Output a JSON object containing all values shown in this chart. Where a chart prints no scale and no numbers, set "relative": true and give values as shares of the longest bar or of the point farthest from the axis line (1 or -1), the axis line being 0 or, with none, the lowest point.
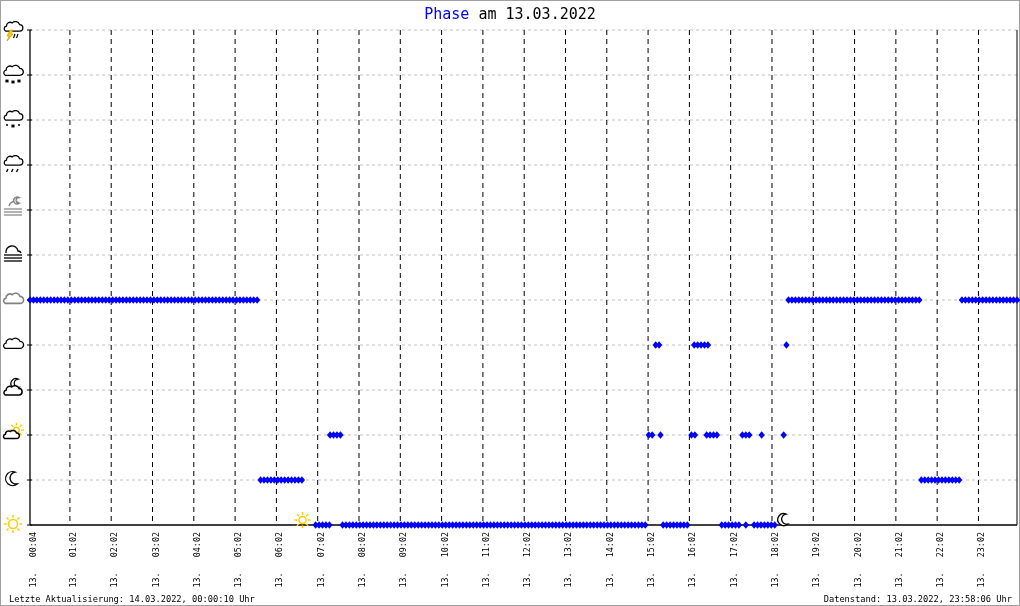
{
  "chart_data": {
    "type": "scatter",
    "title": "Phase am 13.03.2022",
    "annotations": [
      "Letzte Aktualisierung: 14.03.2022, 00:00:10 Uhr",
      "Datenstand: 13.03.2022, 23:58:06 Uhr"
    ],
    "color": "#0000ff",
    "marker": "diamond",
    "grid": true,
    "relative": true,
    "xlim": [
      "2022-03-13T00:04",
      "2022-03-13T23:58"
    ],
    "xticks": [
      {
        "value": "2022-03-13T00:04",
        "label": "13.   00:04"
      },
      {
        "value": "2022-03-13T01:02",
        "label": "13.   01:02"
      },
      {
        "value": "2022-03-13T02:02",
        "label": "13.   02:02"
      },
      {
        "value": "2022-03-13T03:02",
        "label": "13.   03:02"
      },
      {
        "value": "2022-03-13T04:02",
        "label": "13.   04:02"
      },
      {
        "value": "2022-03-13T05:02",
        "label": "13.   05:02"
      },
      {
        "value": "2022-03-13T06:02",
        "label": "13.   06:02"
      },
      {
        "value": "2022-03-13T07:02",
        "label": "13.   07:02"
      },
      {
        "value": "2022-03-13T08:02",
        "label": "13.   08:02"
      },
      {
        "value": "2022-03-13T09:02",
        "label": "13.   09:02"
      },
      {
        "value": "2022-03-13T10:02",
        "label": "13.   10:02"
      },
      {
        "value": "2022-03-13T11:02",
        "label": "13.   11:02"
      },
      {
        "value": "2022-03-13T12:02",
        "label": "13.   12:02"
      },
      {
        "value": "2022-03-13T13:02",
        "label": "13.   13:02"
      },
      {
        "value": "2022-03-13T14:02",
        "label": "13.   14:02"
      },
      {
        "value": "2022-03-13T15:02",
        "label": "13.   15:02"
      },
      {
        "value": "2022-03-13T16:02",
        "label": "13.   16:02"
      },
      {
        "value": "2022-03-13T17:02",
        "label": "13.   17:02"
      },
      {
        "value": "2022-03-13T18:02",
        "label": "13.   18:02"
      },
      {
        "value": "2022-03-13T19:02",
        "label": "13.   19:02"
      },
      {
        "value": "2022-03-13T20:02",
        "label": "13.   20:02"
      },
      {
        "value": "2022-03-13T21:02",
        "label": "13.   21:02"
      },
      {
        "value": "2022-03-13T22:02",
        "label": "13.   22:02"
      },
      {
        "value": "2022-03-13T23:02",
        "label": "13.   23:02"
      }
    ],
    "x": [
      "2022-03-13T00:04",
      "2022-03-13T00:09",
      "2022-03-13T00:14",
      "2022-03-13T00:19",
      "2022-03-13T00:24",
      "2022-03-13T00:29",
      "2022-03-13T00:34",
      "2022-03-13T00:39",
      "2022-03-13T00:44",
      "2022-03-13T00:49",
      "2022-03-13T00:54",
      "2022-03-13T00:59",
      "2022-03-13T01:04",
      "2022-03-13T01:09",
      "2022-03-13T01:14",
      "2022-03-13T01:19",
      "2022-03-13T01:24",
      "2022-03-13T01:29",
      "2022-03-13T01:34",
      "2022-03-13T01:39",
      "2022-03-13T01:44",
      "2022-03-13T01:49",
      "2022-03-13T01:54",
      "2022-03-13T01:59",
      "2022-03-13T02:04",
      "2022-03-13T02:09",
      "2022-03-13T02:14",
      "2022-03-13T02:19",
      "2022-03-13T02:24",
      "2022-03-13T02:29",
      "2022-03-13T02:34",
      "2022-03-13T02:39",
      "2022-03-13T02:44",
      "2022-03-13T02:49",
      "2022-03-13T02:54",
      "2022-03-13T02:59",
      "2022-03-13T03:04",
      "2022-03-13T03:09",
      "2022-03-13T03:14",
      "2022-03-13T03:19",
      "2022-03-13T03:24",
      "2022-03-13T03:29",
      "2022-03-13T03:34",
      "2022-03-13T03:39",
      "2022-03-13T03:44",
      "2022-03-13T03:49",
      "2022-03-13T03:54",
      "2022-03-13T03:59",
      "2022-03-13T04:04",
      "2022-03-13T04:09",
      "2022-03-13T04:14",
      "2022-03-13T04:19",
      "2022-03-13T04:24",
      "2022-03-13T04:29",
      "2022-03-13T04:34",
      "2022-03-13T04:39",
      "2022-03-13T04:44",
      "2022-03-13T04:49",
      "2022-03-13T04:54",
      "2022-03-13T04:59",
      "2022-03-13T05:04",
      "2022-03-13T05:09",
      "2022-03-13T05:14",
      "2022-03-13T05:19",
      "2022-03-13T05:24",
      "2022-03-13T05:29",
      "2022-03-13T05:34",
      "2022-03-13T05:39",
      "2022-03-13T05:44",
      "2022-03-13T05:49",
      "2022-03-13T05:54",
      "2022-03-13T05:59",
      "2022-03-13T06:04",
      "2022-03-13T06:09",
      "2022-03-13T06:14",
      "2022-03-13T06:19",
      "2022-03-13T06:24",
      "2022-03-13T06:29",
      "2022-03-13T06:34",
      "2022-03-13T06:39",
      "2022-03-13T06:59",
      "2022-03-13T07:04",
      "2022-03-13T07:09",
      "2022-03-13T07:14",
      "2022-03-13T07:19",
      "2022-03-13T07:20",
      "2022-03-13T07:25",
      "2022-03-13T07:30",
      "2022-03-13T07:35",
      "2022-03-13T07:38",
      "2022-03-13T07:43",
      "2022-03-13T07:48",
      "2022-03-13T07:53",
      "2022-03-13T07:58",
      "2022-03-13T08:03",
      "2022-03-13T08:08",
      "2022-03-13T08:13",
      "2022-03-13T08:18",
      "2022-03-13T08:23",
      "2022-03-13T08:28",
      "2022-03-13T08:33",
      "2022-03-13T08:38",
      "2022-03-13T08:43",
      "2022-03-13T08:48",
      "2022-03-13T08:53",
      "2022-03-13T08:58",
      "2022-03-13T09:03",
      "2022-03-13T09:08",
      "2022-03-13T09:13",
      "2022-03-13T09:18",
      "2022-03-13T09:23",
      "2022-03-13T09:28",
      "2022-03-13T09:33",
      "2022-03-13T09:38",
      "2022-03-13T09:43",
      "2022-03-13T09:48",
      "2022-03-13T09:53",
      "2022-03-13T09:58",
      "2022-03-13T10:03",
      "2022-03-13T10:08",
      "2022-03-13T10:13",
      "2022-03-13T10:18",
      "2022-03-13T10:23",
      "2022-03-13T10:28",
      "2022-03-13T10:33",
      "2022-03-13T10:38",
      "2022-03-13T10:43",
      "2022-03-13T10:48",
      "2022-03-13T10:53",
      "2022-03-13T10:58",
      "2022-03-13T11:03",
      "2022-03-13T11:08",
      "2022-03-13T11:13",
      "2022-03-13T11:18",
      "2022-03-13T11:23",
      "2022-03-13T11:28",
      "2022-03-13T11:33",
      "2022-03-13T11:38",
      "2022-03-13T11:43",
      "2022-03-13T11:48",
      "2022-03-13T11:53",
      "2022-03-13T11:58",
      "2022-03-13T12:03",
      "2022-03-13T12:08",
      "2022-03-13T12:13",
      "2022-03-13T12:18",
      "2022-03-13T12:23",
      "2022-03-13T12:28",
      "2022-03-13T12:33",
      "2022-03-13T12:38",
      "2022-03-13T12:43",
      "2022-03-13T12:48",
      "2022-03-13T12:53",
      "2022-03-13T12:58",
      "2022-03-13T13:03",
      "2022-03-13T13:08",
      "2022-03-13T13:13",
      "2022-03-13T13:18",
      "2022-03-13T13:23",
      "2022-03-13T13:28",
      "2022-03-13T13:33",
      "2022-03-13T13:38",
      "2022-03-13T13:43",
      "2022-03-13T13:48",
      "2022-03-13T13:53",
      "2022-03-13T13:58",
      "2022-03-13T14:03",
      "2022-03-13T14:08",
      "2022-03-13T14:13",
      "2022-03-13T14:18",
      "2022-03-13T14:23",
      "2022-03-13T14:28",
      "2022-03-13T14:33",
      "2022-03-13T14:38",
      "2022-03-13T14:43",
      "2022-03-13T14:48",
      "2022-03-13T14:53",
      "2022-03-13T14:58",
      "2022-03-13T15:03",
      "2022-03-13T15:08",
      "2022-03-13T15:13",
      "2022-03-13T15:18",
      "2022-03-13T15:20",
      "2022-03-13T15:24",
      "2022-03-13T15:29",
      "2022-03-13T15:34",
      "2022-03-13T15:39",
      "2022-03-13T15:44",
      "2022-03-13T15:49",
      "2022-03-13T15:54",
      "2022-03-13T15:59",
      "2022-03-13T16:05",
      "2022-03-13T16:10",
      "2022-03-13T16:09",
      "2022-03-13T16:14",
      "2022-03-13T16:19",
      "2022-03-13T16:24",
      "2022-03-13T16:29",
      "2022-03-13T16:27",
      "2022-03-13T16:32",
      "2022-03-13T16:37",
      "2022-03-13T16:42",
      "2022-03-13T16:49",
      "2022-03-13T16:54",
      "2022-03-13T16:59",
      "2022-03-13T17:04",
      "2022-03-13T17:09",
      "2022-03-13T17:14",
      "2022-03-13T17:19",
      "2022-03-13T17:24",
      "2022-03-13T17:29",
      "2022-03-13T17:24",
      "2022-03-13T17:36",
      "2022-03-13T17:41",
      "2022-03-13T17:46",
      "2022-03-13T17:51",
      "2022-03-13T17:56",
      "2022-03-13T18:01",
      "2022-03-13T18:06",
      "2022-03-13T17:47",
      "2022-03-13T18:19",
      "2022-03-13T18:23",
      "2022-03-13T18:26",
      "2022-03-13T18:31",
      "2022-03-13T18:36",
      "2022-03-13T18:41",
      "2022-03-13T18:46",
      "2022-03-13T18:51",
      "2022-03-13T18:56",
      "2022-03-13T19:01",
      "2022-03-13T19:06",
      "2022-03-13T19:11",
      "2022-03-13T19:16",
      "2022-03-13T19:21",
      "2022-03-13T19:26",
      "2022-03-13T19:31",
      "2022-03-13T19:36",
      "2022-03-13T19:41",
      "2022-03-13T19:46",
      "2022-03-13T19:51",
      "2022-03-13T19:56",
      "2022-03-13T20:01",
      "2022-03-13T20:06",
      "2022-03-13T20:11",
      "2022-03-13T20:16",
      "2022-03-13T20:21",
      "2022-03-13T20:26",
      "2022-03-13T20:31",
      "2022-03-13T20:36",
      "2022-03-13T20:41",
      "2022-03-13T20:46",
      "2022-03-13T20:51",
      "2022-03-13T20:56",
      "2022-03-13T21:01",
      "2022-03-13T21:06",
      "2022-03-13T21:11",
      "2022-03-13T21:16",
      "2022-03-13T21:21",
      "2022-03-13T21:26",
      "2022-03-13T21:31",
      "2022-03-13T21:36",
      "2022-03-13T21:39",
      "2022-03-13T21:44",
      "2022-03-13T21:49",
      "2022-03-13T21:54",
      "2022-03-13T21:59",
      "2022-03-13T22:04",
      "2022-03-13T22:09",
      "2022-03-13T22:14",
      "2022-03-13T22:19",
      "2022-03-13T22:24",
      "2022-03-13T22:29",
      "2022-03-13T22:34",
      "2022-03-13T22:38",
      "2022-03-13T22:43",
      "2022-03-13T22:48",
      "2022-03-13T22:53",
      "2022-03-13T22:58",
      "2022-03-13T23:03",
      "2022-03-13T23:08",
      "2022-03-13T23:13",
      "2022-03-13T23:18",
      "2022-03-13T23:23",
      "2022-03-13T23:28",
      "2022-03-13T23:33",
      "2022-03-13T23:38",
      "2022-03-13T23:43",
      "2022-03-13T23:48",
      "2022-03-13T23:53",
      "2022-03-13T23:58"
    ],
    "values": [
      1,
      1,
      1,
      1,
      1,
      1,
      1,
      1,
      1,
      1,
      1,
      1,
      1,
      1,
      1,
      1,
      1,
      1,
      1,
      1,
      1,
      1,
      1,
      1,
      1,
      1,
      1,
      1,
      1,
      1,
      1,
      1,
      1,
      1,
      1,
      1,
      1,
      1,
      1,
      1,
      1,
      1,
      1,
      1,
      1,
      1,
      1,
      1,
      1,
      1,
      1,
      1,
      1,
      1,
      1,
      1,
      1,
      1,
      1,
      1,
      1,
      1,
      1,
      1,
      1,
      1,
      1,
      0.2,
      0.2,
      0.2,
      0.2,
      0.2,
      0.2,
      0.2,
      0.2,
      0.2,
      0.2,
      0.2,
      0.2,
      0.2,
      0,
      0,
      0,
      0,
      0,
      0.4,
      0.4,
      0.4,
      0.4,
      0,
      0,
      0,
      0,
      0,
      0,
      0,
      0,
      0,
      0,
      0,
      0,
      0,
      0,
      0,
      0,
      0,
      0,
      0,
      0,
      0,
      0,
      0,
      0,
      0,
      0,
      0,
      0,
      0,
      0,
      0,
      0,
      0,
      0,
      0,
      0,
      0,
      0,
      0,
      0,
      0,
      0,
      0,
      0,
      0,
      0,
      0,
      0,
      0,
      0,
      0,
      0,
      0,
      0,
      0,
      0,
      0,
      0,
      0,
      0,
      0,
      0,
      0,
      0,
      0,
      0,
      0,
      0,
      0,
      0,
      0,
      0,
      0,
      0,
      0,
      0,
      0,
      0,
      0,
      0,
      0,
      0,
      0,
      0,
      0,
      0,
      0,
      0,
      0,
      0.4,
      0.4,
      0.8,
      0.8,
      0.4,
      0,
      0,
      0,
      0,
      0,
      0,
      0,
      0,
      0.4,
      0.4,
      0.8,
      0.8,
      0.8,
      0.8,
      0.8,
      0.4,
      0.4,
      0.4,
      0.4,
      0,
      0,
      0,
      0,
      0,
      0,
      0.4,
      0.4,
      0.4,
      0,
      0,
      0,
      0,
      0,
      0,
      0,
      0,
      0.4,
      0.4,
      0.8,
      1,
      1,
      1,
      1,
      1,
      1,
      1,
      1,
      1,
      1,
      1,
      1,
      1,
      1,
      1,
      1,
      1,
      1,
      1,
      1,
      1,
      1,
      1,
      1,
      1,
      1,
      1,
      1,
      1,
      1,
      1,
      1,
      1,
      1,
      1,
      1,
      1,
      1,
      1,
      0.2,
      0.2,
      0.2,
      0.2,
      0.2,
      0.2,
      0.2,
      0.2,
      0.2,
      0.2,
      0.2,
      0.2,
      1,
      1,
      1,
      1,
      1,
      1,
      1,
      1,
      1,
      1,
      1,
      1,
      1,
      1,
      1,
      1,
      1
    ]
  }
}
